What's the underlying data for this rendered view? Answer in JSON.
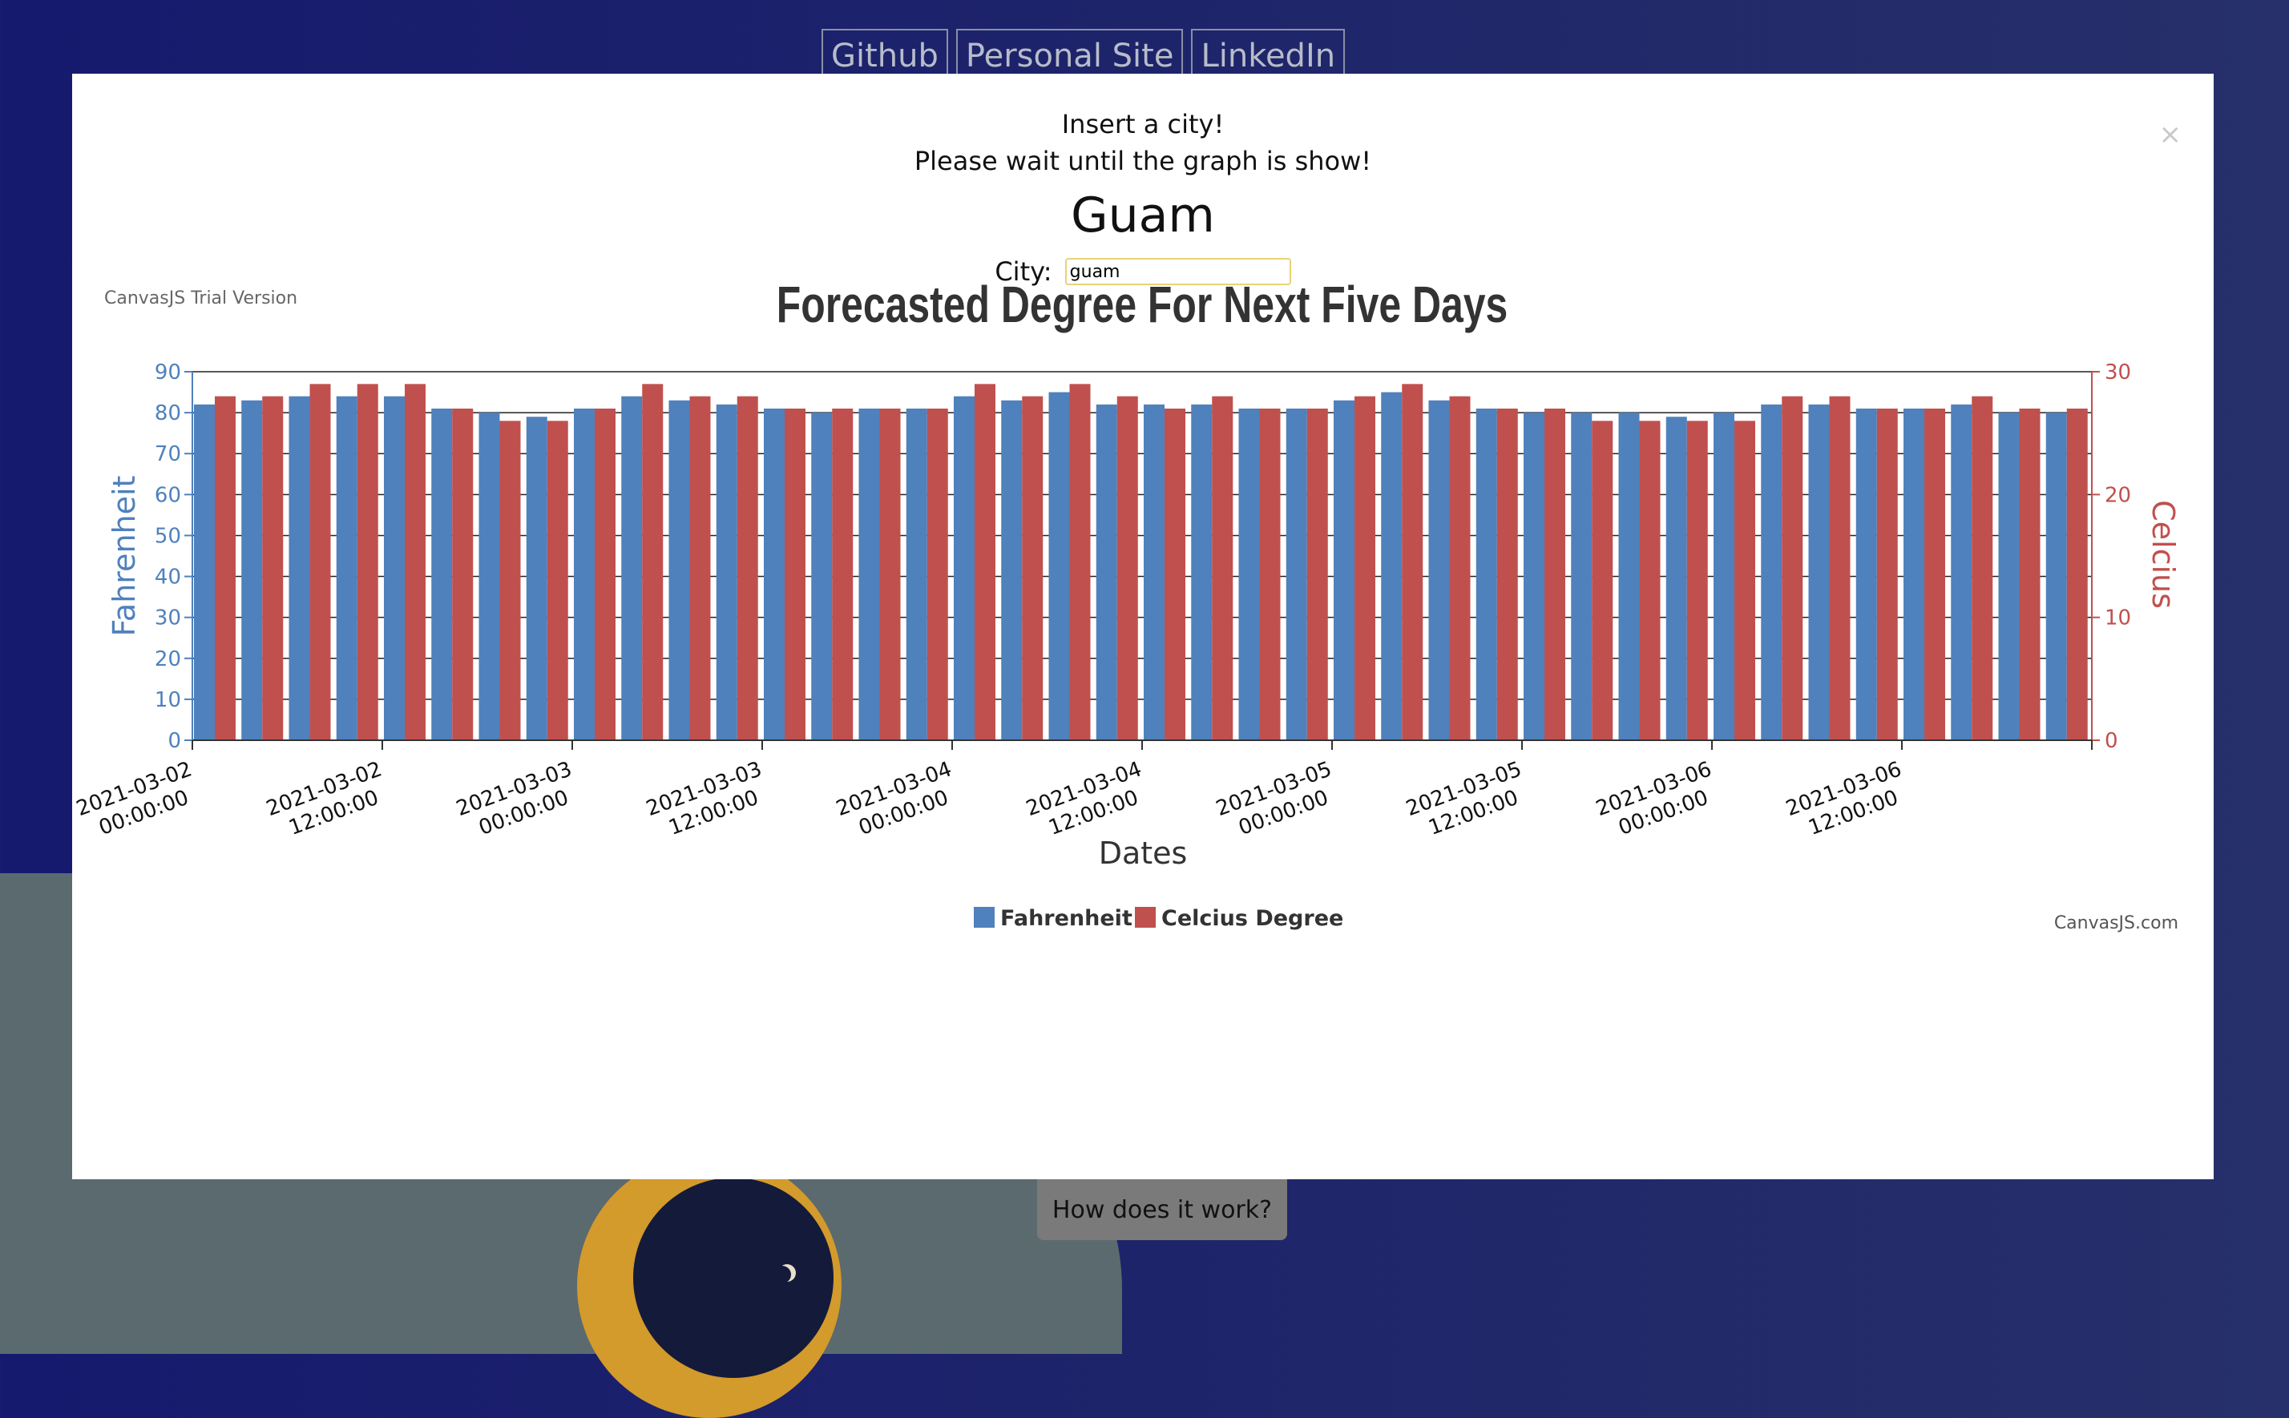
{
  "nav": {
    "links": [
      "Github",
      "Personal Site",
      "LinkedIn"
    ]
  },
  "modal": {
    "line1": "Insert a city!",
    "line2": "Please wait until the graph is show!",
    "city_name": "Guam",
    "city_label": "City:",
    "city_value": "guam",
    "close": "×",
    "trial_text": "CanvasJS Trial Version",
    "credit": "CanvasJS.com"
  },
  "how_button": "How does it work?",
  "colors": {
    "fahrenheit": "#4f81bc",
    "celsius": "#c0504e",
    "title": "#333333"
  },
  "chart_data": {
    "type": "bar",
    "title": "Forecasted Degree For Next Five Days",
    "xlabel": "Dates",
    "ylabel": "Fahrenheit",
    "y2label": "Celcius",
    "ylim": [
      0,
      90
    ],
    "y2lim": [
      0,
      30
    ],
    "yticks": [
      0,
      10,
      20,
      30,
      40,
      50,
      60,
      70,
      80,
      90
    ],
    "y2ticks": [
      0,
      10,
      20,
      30
    ],
    "x_tick_labels": [
      [
        "2021-03-02",
        "00:00:00"
      ],
      [
        "2021-03-02",
        "12:00:00"
      ],
      [
        "2021-03-03",
        "00:00:00"
      ],
      [
        "2021-03-03",
        "12:00:00"
      ],
      [
        "2021-03-04",
        "00:00:00"
      ],
      [
        "2021-03-04",
        "12:00:00"
      ],
      [
        "2021-03-05",
        "00:00:00"
      ],
      [
        "2021-03-05",
        "12:00:00"
      ],
      [
        "2021-03-06",
        "00:00:00"
      ],
      [
        "2021-03-06",
        "12:00:00"
      ]
    ],
    "legend_position": "bottom-center",
    "series": [
      {
        "name": "Fahrenheit",
        "axis": "left",
        "values": [
          82,
          83,
          84,
          84,
          84,
          81,
          80,
          79,
          81,
          84,
          83,
          82,
          81,
          80,
          81,
          81,
          84,
          83,
          85,
          82,
          82,
          82,
          81,
          81,
          83,
          85,
          83,
          81,
          80,
          80,
          80,
          79,
          80,
          82,
          82,
          81,
          81,
          82,
          80,
          80
        ]
      },
      {
        "name": "Celcius Degree",
        "axis": "right",
        "values": [
          28,
          28,
          29,
          29,
          29,
          27,
          26,
          26,
          27,
          29,
          28,
          28,
          27,
          27,
          27,
          27,
          29,
          28,
          29,
          28,
          27,
          28,
          27,
          27,
          28,
          29,
          28,
          27,
          27,
          26,
          26,
          26,
          26,
          28,
          28,
          27,
          27,
          28,
          27,
          27
        ]
      }
    ]
  }
}
